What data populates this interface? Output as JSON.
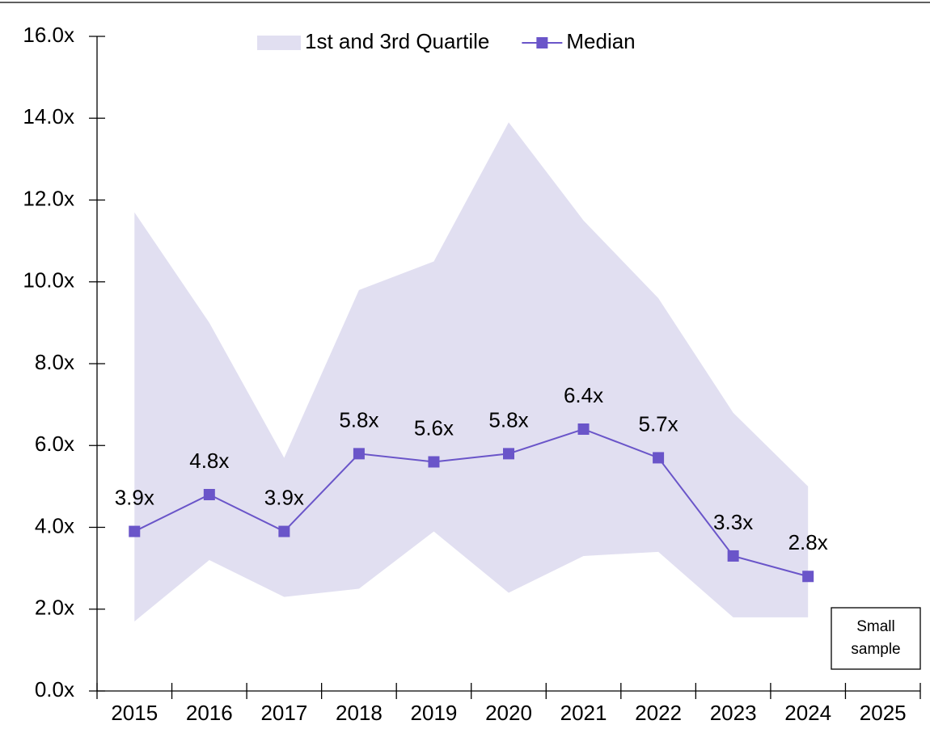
{
  "chart_data": {
    "type": "line",
    "categories": [
      "2015",
      "2016",
      "2017",
      "2018",
      "2019",
      "2020",
      "2021",
      "2022",
      "2023",
      "2024",
      "2025"
    ],
    "series": [
      {
        "name": "1st and 3rd Quartile",
        "color": "#e1dff1",
        "kind": "band",
        "low": [
          1.7,
          3.2,
          2.3,
          2.5,
          3.9,
          2.4,
          3.3,
          3.4,
          1.8,
          1.8,
          null
        ],
        "high": [
          11.7,
          9.0,
          5.7,
          9.8,
          10.5,
          13.9,
          11.5,
          9.6,
          6.8,
          5.0,
          null
        ]
      },
      {
        "name": "Median",
        "color": "#6a55c9",
        "kind": "line",
        "values": [
          3.9,
          4.8,
          3.9,
          5.8,
          5.6,
          5.8,
          6.4,
          5.7,
          3.3,
          2.8,
          null
        ],
        "value_labels": [
          "3.9x",
          "4.8x",
          "3.9x",
          "5.8x",
          "5.6x",
          "5.8x",
          "6.4x",
          "5.7x",
          "3.3x",
          "2.8x",
          null
        ]
      }
    ],
    "ylim": [
      0,
      16
    ],
    "yticks": [
      {
        "value": 0,
        "label": "0.0x"
      },
      {
        "value": 2,
        "label": "2.0x"
      },
      {
        "value": 4,
        "label": "4.0x"
      },
      {
        "value": 6,
        "label": "6.0x"
      },
      {
        "value": 8,
        "label": "8.0x"
      },
      {
        "value": 10,
        "label": "10.0x"
      },
      {
        "value": 12,
        "label": "12.0x"
      },
      {
        "value": 14,
        "label": "14.0x"
      },
      {
        "value": 16,
        "label": "16.0x"
      }
    ],
    "annotation": [
      "Small",
      "sample"
    ],
    "legend": "top"
  }
}
